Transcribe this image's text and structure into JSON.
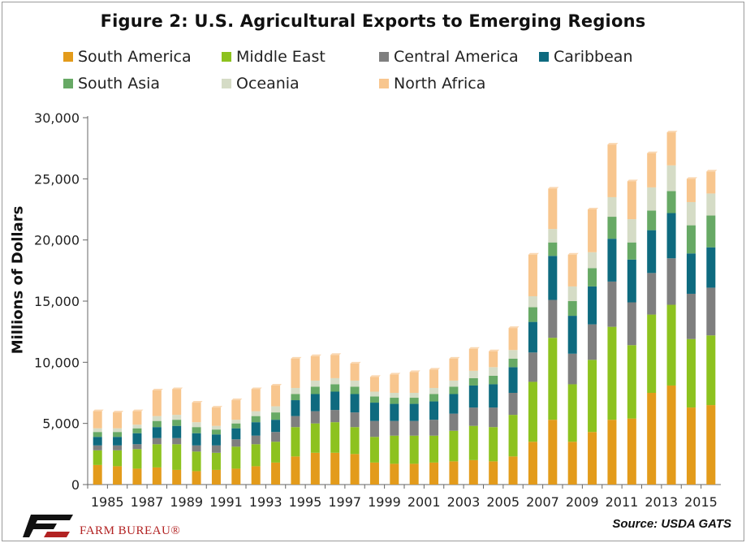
{
  "chart_data": {
    "type": "bar",
    "stacked": true,
    "title": "Figure 2: U.S. Agricultural Exports to Emerging Regions",
    "ylabel": "Millions of Dollars",
    "xlabel": "",
    "ylim": [
      0,
      30000
    ],
    "yticks": [
      "0",
      "5,000",
      "10,000",
      "15,000",
      "20,000",
      "25,000",
      "30,000"
    ],
    "categories": [
      "1985",
      "1986",
      "1987",
      "1988",
      "1989",
      "1990",
      "1991",
      "1992",
      "1993",
      "1994",
      "1995",
      "1996",
      "1997",
      "1998",
      "1999",
      "2000",
      "2001",
      "2002",
      "2003",
      "2004",
      "2005",
      "2006",
      "2007",
      "2008",
      "2009",
      "2010",
      "2011",
      "2012",
      "2013",
      "2014",
      "2015",
      "2016"
    ],
    "xtick_labels": [
      "1985",
      "1987",
      "1989",
      "1991",
      "1993",
      "1995",
      "1997",
      "1999",
      "2001",
      "2003",
      "2005",
      "2007",
      "2009",
      "2011",
      "2013",
      "2015"
    ],
    "legend_position": "top",
    "grid": false,
    "series": [
      {
        "name": "South America",
        "color": "#E39B1B",
        "values": [
          1600,
          1500,
          1300,
          1400,
          1200,
          1100,
          1200,
          1300,
          1500,
          1800,
          2300,
          2600,
          2600,
          2500,
          1800,
          1700,
          1700,
          1800,
          1900,
          2000,
          1900,
          2300,
          3500,
          5300,
          3500,
          4300,
          5300,
          5400,
          7500,
          8100,
          6300,
          6500
        ]
      },
      {
        "name": "Middle East",
        "color": "#8DC21F",
        "values": [
          1200,
          1300,
          1600,
          1900,
          2100,
          1600,
          1400,
          1800,
          1800,
          1700,
          2400,
          2400,
          2500,
          2200,
          2100,
          2300,
          2300,
          2200,
          2500,
          2800,
          2800,
          3400,
          4900,
          6700,
          4700,
          5900,
          7600,
          6000,
          6400,
          6600,
          5600,
          5700
        ]
      },
      {
        "name": "Central America",
        "color": "#7F7F7F",
        "values": [
          400,
          400,
          400,
          500,
          500,
          500,
          600,
          600,
          700,
          800,
          900,
          1000,
          1000,
          1200,
          1300,
          1200,
          1200,
          1300,
          1400,
          1500,
          1600,
          1800,
          2400,
          3100,
          2500,
          2900,
          3700,
          3500,
          3400,
          3800,
          3700,
          3900
        ]
      },
      {
        "name": "Caribbean",
        "color": "#0E6A7F",
        "values": [
          700,
          700,
          900,
          900,
          1000,
          1000,
          900,
          900,
          1100,
          1000,
          1300,
          1400,
          1500,
          1500,
          1500,
          1400,
          1400,
          1500,
          1600,
          1800,
          1900,
          2100,
          2500,
          3600,
          3100,
          3100,
          3500,
          3500,
          3500,
          3700,
          3300,
          3300
        ]
      },
      {
        "name": "South Asia",
        "color": "#67A965",
        "values": [
          400,
          400,
          400,
          500,
          500,
          500,
          400,
          400,
          500,
          600,
          500,
          600,
          600,
          600,
          500,
          500,
          500,
          600,
          600,
          600,
          700,
          700,
          1200,
          1100,
          1200,
          1500,
          1800,
          1400,
          1600,
          1800,
          2300,
          2600
        ]
      },
      {
        "name": "Oceania",
        "color": "#D5DCC6",
        "values": [
          300,
          300,
          300,
          400,
          400,
          400,
          300,
          300,
          400,
          500,
          500,
          500,
          500,
          500,
          400,
          400,
          400,
          500,
          500,
          600,
          700,
          700,
          900,
          1100,
          1200,
          1300,
          1600,
          1900,
          1900,
          2100,
          1900,
          1800
        ]
      },
      {
        "name": "North Africa",
        "color": "#F8C68E",
        "values": [
          1400,
          1300,
          1100,
          2100,
          2100,
          1600,
          1500,
          1600,
          1800,
          1700,
          2400,
          2000,
          1900,
          1400,
          1200,
          1500,
          1700,
          1500,
          1800,
          1800,
          1300,
          1800,
          3400,
          3300,
          2600,
          3500,
          4300,
          3100,
          2800,
          2700,
          1900,
          1800
        ]
      }
    ]
  },
  "source": "Source: USDA GATS",
  "logo_text": "FARM BUREAU®",
  "logo_color": "#B22222"
}
